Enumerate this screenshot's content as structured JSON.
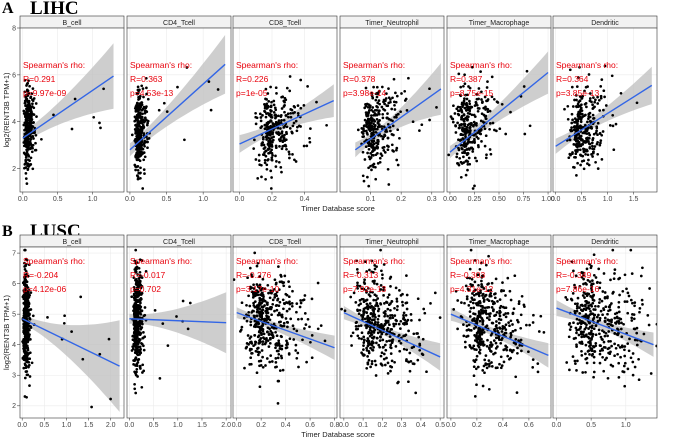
{
  "panels": [
    {
      "label": "A",
      "title": "LIHC"
    },
    {
      "label": "B",
      "title": "LUSC"
    }
  ],
  "chart_data": [
    {
      "type": "scatter",
      "panel": "A",
      "title": "LIHC",
      "xlabel": "Timer Database score",
      "ylabel": "log2(RENT3B TPM+1)",
      "ylim": [
        1,
        8
      ],
      "yticks": [
        2,
        4,
        6,
        8
      ],
      "annotation_heading": "Spearman's rho:",
      "series": [
        {
          "name": "B_cell",
          "rho": "R=0.291",
          "p": "p=9.97e-09",
          "xlim": [
            -0.04,
            1.45
          ],
          "xticks": [
            0,
            0.5,
            1.0
          ],
          "xtick_labels": [
            "0.0",
            "0.5",
            "1.0"
          ],
          "cloud": {
            "x_mean": 0.07,
            "x_sd": 0.04,
            "y_mean": 3.7,
            "y_sd": 0.9
          },
          "fit": {
            "x": [
              0.0,
              1.3
            ],
            "y": [
              3.3,
              5.95
            ]
          },
          "band": [
            0.25,
            1.4
          ]
        },
        {
          "name": "CD4_Tcell",
          "rho": "R=0.363",
          "p": "p=4.53e-13",
          "xlim": [
            -0.04,
            1.38
          ],
          "xticks": [
            0,
            0.5,
            1.0
          ],
          "xtick_labels": [
            "0.0",
            "0.5",
            "1.0"
          ],
          "cloud": {
            "x_mean": 0.12,
            "x_sd": 0.04,
            "y_mean": 3.6,
            "y_sd": 0.95
          },
          "fit": {
            "x": [
              0.0,
              1.3
            ],
            "y": [
              2.8,
              6.45
            ]
          },
          "band": [
            0.25,
            1.25
          ]
        },
        {
          "name": "CD8_Tcell",
          "rho": "R=0.226",
          "p": "p=1e-05",
          "xlim": [
            -0.04,
            0.6
          ],
          "xticks": [
            0,
            0.2,
            0.4
          ],
          "xtick_labels": [
            "0.0",
            "0.2",
            "0.4"
          ],
          "cloud": {
            "x_mean": 0.2,
            "x_sd": 0.07,
            "y_mean": 3.6,
            "y_sd": 0.85
          },
          "fit": {
            "x": [
              0.0,
              0.58
            ],
            "y": [
              3.05,
              4.9
            ]
          },
          "band": [
            0.2,
            0.7
          ]
        },
        {
          "name": "Timer_Neutrophil",
          "rho": "R=0.378",
          "p": "p=3.98e-14",
          "xlim": [
            0.0,
            0.34
          ],
          "xticks": [
            0.1,
            0.2,
            0.3
          ],
          "xtick_labels": [
            "0.1",
            "0.2",
            "0.3"
          ],
          "cloud": {
            "x_mean": 0.11,
            "x_sd": 0.035,
            "y_mean": 3.7,
            "y_sd": 0.9
          },
          "fit": {
            "x": [
              0.05,
              0.33
            ],
            "y": [
              2.8,
              5.4
            ]
          },
          "band": [
            0.2,
            1.1
          ]
        },
        {
          "name": "Timer_Macrophage",
          "rho": "R=0.387",
          "p": "p=8.75e-15",
          "xlim": [
            -0.03,
            1.03
          ],
          "xticks": [
            0,
            0.25,
            0.5,
            0.75,
            1.0
          ],
          "xtick_labels": [
            "0.00",
            "0.25",
            "0.50",
            "0.75",
            "1.00"
          ],
          "cloud": {
            "x_mean": 0.18,
            "x_sd": 0.1,
            "y_mean": 3.7,
            "y_sd": 0.9
          },
          "fit": {
            "x": [
              0.0,
              1.0
            ],
            "y": [
              2.7,
              6.1
            ]
          },
          "band": [
            0.2,
            0.9
          ]
        },
        {
          "name": "Dendritic",
          "rho": "R=0.364",
          "p": "p=3.85e-13",
          "xlim": [
            -0.05,
            1.95
          ],
          "xticks": [
            0,
            0.5,
            1.0,
            1.5
          ],
          "xtick_labels": [
            "0.0",
            "0.5",
            "1.0",
            "1.5"
          ],
          "cloud": {
            "x_mean": 0.5,
            "x_sd": 0.22,
            "y_mean": 3.7,
            "y_sd": 0.9
          },
          "fit": {
            "x": [
              0.0,
              1.85
            ],
            "y": [
              2.95,
              5.55
            ]
          },
          "band": [
            0.2,
            0.8
          ]
        }
      ]
    },
    {
      "type": "scatter",
      "panel": "B",
      "title": "LUSC",
      "xlabel": "Timer Database score",
      "ylabel": "log2(RENT3B TPM+1)",
      "ylim": [
        1.6,
        7.2
      ],
      "yticks": [
        2,
        3,
        4,
        5,
        6,
        7
      ],
      "annotation_heading": "Spearman's rho:",
      "series": [
        {
          "name": "B_cell",
          "rho": "R=-0.204",
          "p": "p=4.12e-06",
          "xlim": [
            -0.05,
            2.3
          ],
          "xticks": [
            0,
            0.5,
            1.0,
            1.5,
            2.0
          ],
          "xtick_labels": [
            "0.0",
            "0.5",
            "1.0",
            "1.5",
            "2.0"
          ],
          "cloud": {
            "x_mean": 0.08,
            "x_sd": 0.04,
            "y_mean": 4.8,
            "y_sd": 0.85
          },
          "fit": {
            "x": [
              0.0,
              2.2
            ],
            "y": [
              4.85,
              3.3
            ]
          },
          "band": [
            0.15,
            1.5
          ]
        },
        {
          "name": "CD4_Tcell",
          "rho": "R=-0.017",
          "p": "p=0.702",
          "xlim": [
            -0.05,
            2.1
          ],
          "xticks": [
            0,
            0.5,
            1.0,
            1.5,
            2.0
          ],
          "xtick_labels": [
            "0.0",
            "0.5",
            "1.0",
            "1.5",
            "2.0"
          ],
          "cloud": {
            "x_mean": 0.15,
            "x_sd": 0.05,
            "y_mean": 4.8,
            "y_sd": 0.85
          },
          "fit": {
            "x": [
              0.0,
              2.0
            ],
            "y": [
              4.85,
              4.72
            ]
          },
          "band": [
            0.15,
            1.0
          ]
        },
        {
          "name": "CD8_Tcell",
          "rho": "R=-0.276",
          "p": "p=3.17e-10",
          "xlim": [
            -0.03,
            0.82
          ],
          "xticks": [
            0,
            0.2,
            0.4,
            0.6,
            0.8
          ],
          "xtick_labels": [
            "0.0",
            "0.2",
            "0.4",
            "0.6",
            "0.8"
          ],
          "cloud": {
            "x_mean": 0.22,
            "x_sd": 0.12,
            "y_mean": 4.8,
            "y_sd": 0.8
          },
          "fit": {
            "x": [
              0.0,
              0.8
            ],
            "y": [
              5.05,
              3.9
            ]
          },
          "band": [
            0.12,
            0.4
          ]
        },
        {
          "name": "Timer_Neutrophil",
          "rho": "R=-0.313",
          "p": "p=7.92e-13",
          "xlim": [
            -0.02,
            0.52
          ],
          "xticks": [
            0,
            0.1,
            0.2,
            0.3,
            0.4,
            0.5
          ],
          "xtick_labels": [
            "0.0",
            "0.1",
            "0.2",
            "0.3",
            "0.4",
            "0.5"
          ],
          "cloud": {
            "x_mean": 0.16,
            "x_sd": 0.09,
            "y_mean": 4.8,
            "y_sd": 0.8
          },
          "fit": {
            "x": [
              0.0,
              0.5
            ],
            "y": [
              5.05,
              3.6
            ]
          },
          "band": [
            0.12,
            0.45
          ]
        },
        {
          "name": "Timer_Macrophage",
          "rho": "R=-0.303",
          "p": "p=4.31e-12",
          "xlim": [
            -0.03,
            0.77
          ],
          "xticks": [
            0,
            0.2,
            0.4,
            0.6
          ],
          "xtick_labels": [
            "0.0",
            "0.2",
            "0.4",
            "0.6"
          ],
          "cloud": {
            "x_mean": 0.25,
            "x_sd": 0.13,
            "y_mean": 4.8,
            "y_sd": 0.8
          },
          "fit": {
            "x": [
              0.0,
              0.75
            ],
            "y": [
              5.0,
              3.65
            ]
          },
          "band": [
            0.12,
            0.4
          ]
        },
        {
          "name": "Dendritic",
          "rho": "R=-0.349",
          "p": "p=7.86e-16",
          "xlim": [
            -0.05,
            1.45
          ],
          "xticks": [
            0,
            0.5,
            1.0
          ],
          "xtick_labels": [
            "0.0",
            "0.5",
            "1.0"
          ],
          "cloud": {
            "x_mean": 0.55,
            "x_sd": 0.28,
            "y_mean": 4.8,
            "y_sd": 0.8
          },
          "fit": {
            "x": [
              0.0,
              1.4
            ],
            "y": [
              5.2,
              4.0
            ]
          },
          "band": [
            0.12,
            0.4
          ]
        }
      ]
    }
  ]
}
